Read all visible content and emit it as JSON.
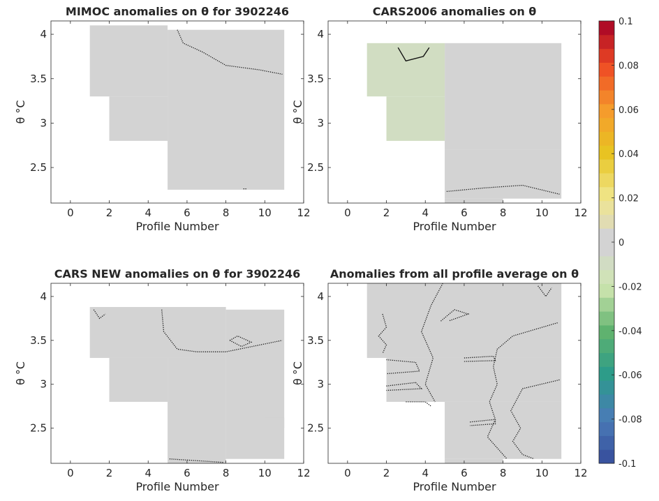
{
  "chart_data": [
    {
      "type": "heatmap",
      "title": "MIMOC anomalies on θ  for 3902246",
      "xlabel": "Profile Number",
      "ylabel": "θ °C",
      "xlim": [
        -1,
        12
      ],
      "ylim": [
        2.1,
        4.15
      ],
      "xticks": [
        0,
        2,
        4,
        6,
        8,
        10,
        12
      ],
      "yticks": [
        2.5,
        3,
        3.5,
        4
      ],
      "cells": [
        {
          "x0": 1,
          "x1": 5,
          "y0": 3.3,
          "y1": 4.1,
          "v": -0.006
        },
        {
          "x0": 2,
          "x1": 5,
          "y0": 2.8,
          "y1": 3.3,
          "v": -0.006
        },
        {
          "x0": 5,
          "x1": 11,
          "y0": 2.25,
          "y1": 4.05,
          "v": 0.0
        }
      ],
      "contours": [
        {
          "style": "dotted",
          "points": [
            [
              5.5,
              4.05
            ],
            [
              5.8,
              3.9
            ],
            [
              6.8,
              3.8
            ],
            [
              8,
              3.65
            ],
            [
              9.7,
              3.6
            ],
            [
              10.9,
              3.55
            ]
          ]
        },
        {
          "style": "dotted",
          "points": [
            [
              8.9,
              2.26
            ],
            [
              9.1,
              2.26
            ]
          ]
        }
      ]
    },
    {
      "type": "heatmap",
      "title": "CARS2006 anomalies on θ",
      "xlabel": "Profile Number",
      "ylabel": "θ °C",
      "xlim": [
        -1,
        12
      ],
      "ylim": [
        2.1,
        4.15
      ],
      "xticks": [
        0,
        2,
        4,
        6,
        8,
        10,
        12
      ],
      "yticks": [
        2.5,
        3,
        3.5,
        4
      ],
      "cells": [
        {
          "x0": 1,
          "x1": 5,
          "y0": 3.3,
          "y1": 3.9,
          "v": -0.01
        },
        {
          "x0": 2,
          "x1": 5,
          "y0": 2.8,
          "y1": 3.3,
          "v": -0.01
        },
        {
          "x0": 5,
          "x1": 11,
          "y0": 2.7,
          "y1": 3.9,
          "v": -0.008
        },
        {
          "x0": 5,
          "x1": 11,
          "y0": 2.15,
          "y1": 2.7,
          "v": 0.0
        },
        {
          "x0": 5,
          "x1": 8,
          "y0": 2.1,
          "y1": 2.15,
          "v": 0.0
        }
      ],
      "contours": [
        {
          "style": "solid",
          "points": [
            [
              2.6,
              3.85
            ],
            [
              3.0,
              3.7
            ],
            [
              3.9,
              3.75
            ],
            [
              4.2,
              3.85
            ]
          ]
        },
        {
          "style": "dotted",
          "points": [
            [
              5.1,
              2.23
            ],
            [
              7,
              2.27
            ],
            [
              9,
              2.3
            ],
            [
              10.9,
              2.2
            ]
          ]
        }
      ]
    },
    {
      "type": "heatmap",
      "title": "CARS NEW anomalies on θ for 3902246",
      "xlabel": "Profile Number",
      "ylabel": "θ °C",
      "xlim": [
        -1,
        12
      ],
      "ylim": [
        2.1,
        4.15
      ],
      "xticks": [
        0,
        2,
        4,
        6,
        8,
        10,
        12
      ],
      "yticks": [
        2.5,
        3,
        3.5,
        4
      ],
      "cells": [
        {
          "x0": 1,
          "x1": 8,
          "y0": 3.3,
          "y1": 3.88,
          "v": 0.0
        },
        {
          "x0": 2,
          "x1": 5,
          "y0": 2.8,
          "y1": 3.3,
          "v": 0.0
        },
        {
          "x0": 5,
          "x1": 8,
          "y0": 2.1,
          "y1": 3.3,
          "v": 0.0
        },
        {
          "x0": 8,
          "x1": 11,
          "y0": 2.15,
          "y1": 3.85,
          "v": 0.0
        },
        {
          "x0": 10,
          "x1": 11,
          "y0": 2.5,
          "y1": 2.62,
          "v": -0.005
        }
      ],
      "contours": [
        {
          "style": "dotted",
          "points": [
            [
              1.2,
              3.85
            ],
            [
              1.5,
              3.75
            ],
            [
              1.8,
              3.8
            ]
          ]
        },
        {
          "style": "dotted",
          "points": [
            [
              4.7,
              3.85
            ],
            [
              4.8,
              3.6
            ],
            [
              5.5,
              3.4
            ],
            [
              6.5,
              3.37
            ],
            [
              8,
              3.37
            ],
            [
              10.9,
              3.5
            ]
          ]
        },
        {
          "style": "dotted",
          "points": [
            [
              8.2,
              3.5
            ],
            [
              8.6,
              3.55
            ],
            [
              9.3,
              3.48
            ],
            [
              8.8,
              3.43
            ],
            [
              8.2,
              3.5
            ]
          ]
        },
        {
          "style": "dotted",
          "points": [
            [
              5.1,
              2.15
            ],
            [
              6.5,
              2.13
            ],
            [
              7.9,
              2.11
            ]
          ]
        }
      ]
    },
    {
      "type": "heatmap",
      "title": "Anomalies from all profile average on θ",
      "xlabel": "Profile Number",
      "ylabel": "θ °C",
      "xlim": [
        -1,
        12
      ],
      "ylim": [
        2.1,
        4.15
      ],
      "xticks": [
        0,
        2,
        4,
        6,
        8,
        10,
        12
      ],
      "yticks": [
        2.5,
        3,
        3.5,
        4
      ],
      "cells": [
        {
          "x0": 1,
          "x1": 11,
          "y0": 3.3,
          "y1": 4.15,
          "v": 0.0
        },
        {
          "x0": 2,
          "x1": 11,
          "y0": 2.8,
          "y1": 3.3,
          "v": 0.0
        },
        {
          "x0": 5,
          "x1": 11,
          "y0": 2.15,
          "y1": 2.8,
          "v": 0.0
        },
        {
          "x0": 5,
          "x1": 8,
          "y0": 2.1,
          "y1": 2.15,
          "v": 0.0
        }
      ],
      "contours": [
        {
          "style": "dotted",
          "points": [
            [
              4.9,
              4.15
            ],
            [
              4.3,
              3.9
            ],
            [
              3.8,
              3.6
            ],
            [
              4.4,
              3.3
            ],
            [
              4.0,
              3.0
            ],
            [
              4.5,
              2.8
            ]
          ]
        },
        {
          "style": "dotted",
          "points": [
            [
              1.8,
              3.8
            ],
            [
              2.0,
              3.65
            ],
            [
              1.6,
              3.55
            ],
            [
              2.0,
              3.45
            ],
            [
              1.8,
              3.35
            ]
          ]
        },
        {
          "style": "dotted",
          "points": [
            [
              2.0,
              3.28
            ],
            [
              3.5,
              3.25
            ],
            [
              3.7,
              3.15
            ],
            [
              2.0,
              3.12
            ]
          ]
        },
        {
          "style": "dotted",
          "points": [
            [
              2.0,
              2.98
            ],
            [
              3.5,
              3.02
            ],
            [
              3.8,
              2.95
            ],
            [
              2.0,
              2.93
            ]
          ]
        },
        {
          "style": "dotted",
          "points": [
            [
              3.0,
              2.8
            ],
            [
              4.0,
              2.8
            ],
            [
              4.3,
              2.75
            ]
          ]
        },
        {
          "style": "dotted",
          "points": [
            [
              4.8,
              3.72
            ],
            [
              5.5,
              3.85
            ],
            [
              6.2,
              3.8
            ],
            [
              5.2,
              3.72
            ]
          ]
        },
        {
          "style": "dotted",
          "points": [
            [
              10.8,
              3.7
            ],
            [
              8.5,
              3.55
            ],
            [
              7.7,
              3.4
            ],
            [
              7.5,
              3.2
            ],
            [
              7.7,
              3.0
            ],
            [
              7.3,
              2.8
            ],
            [
              7.6,
              2.6
            ],
            [
              7.2,
              2.4
            ],
            [
              8.0,
              2.2
            ],
            [
              8.2,
              2.15
            ]
          ]
        },
        {
          "style": "dotted",
          "points": [
            [
              10.9,
              3.05
            ],
            [
              9.0,
              2.95
            ],
            [
              8.4,
              2.7
            ],
            [
              8.9,
              2.5
            ],
            [
              8.5,
              2.35
            ],
            [
              9.0,
              2.2
            ],
            [
              9.6,
              2.15
            ]
          ]
        },
        {
          "style": "dotted",
          "points": [
            [
              6.0,
              3.3
            ],
            [
              7.5,
              3.32
            ],
            [
              7.6,
              3.27
            ],
            [
              6.0,
              3.26
            ]
          ]
        },
        {
          "style": "dotted",
          "points": [
            [
              6.3,
              2.57
            ],
            [
              7.6,
              2.6
            ],
            [
              7.6,
              2.55
            ],
            [
              6.3,
              2.53
            ]
          ]
        },
        {
          "style": "dotted",
          "points": [
            [
              9.8,
              4.12
            ],
            [
              10.2,
              4.0
            ],
            [
              10.5,
              4.1
            ]
          ]
        }
      ]
    }
  ],
  "colorbar": {
    "min": -0.1,
    "max": 0.1,
    "ticks": [
      0.1,
      0.08,
      0.06,
      0.04,
      0.02,
      0,
      -0.02,
      -0.04,
      -0.06,
      -0.08,
      -0.1
    ],
    "tick_labels": [
      "0.1",
      "0.08",
      "0.06",
      "0.04",
      "0.02",
      "0",
      "-0.02",
      "-0.04",
      "-0.06",
      "-0.08",
      "-0.1"
    ],
    "levels": 32,
    "neutral_band": [
      -0.008,
      0.008
    ],
    "neutral_color": "#d3d3d3",
    "colormap_stops": [
      "#364b9a",
      "#4a7bb7",
      "#2b9b8a",
      "#61b36e",
      "#cfe6b0",
      "#d3d3d3",
      "#f0e68c",
      "#e8c422",
      "#f59b2c",
      "#ee4a24",
      "#a50026"
    ]
  }
}
